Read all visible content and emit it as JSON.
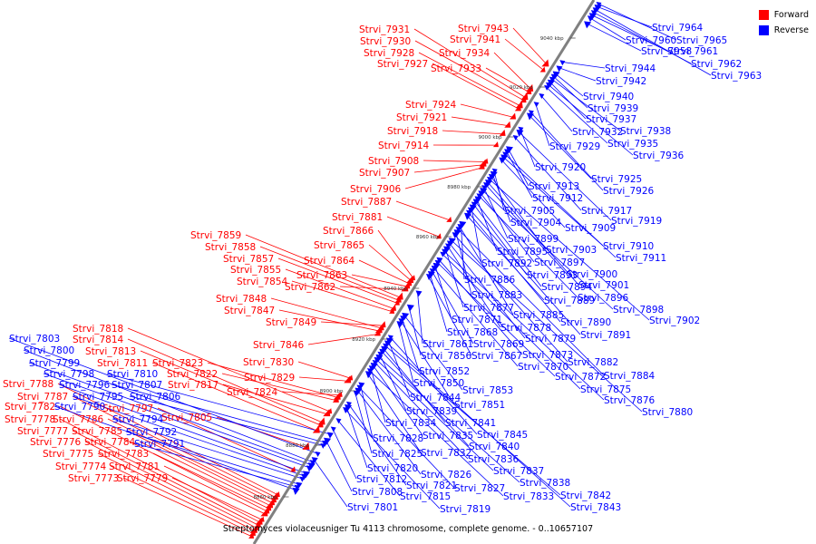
{
  "caption": "Streptomyces violaceusniger Tu 4113 chromosome, complete genome. - 0..10657107",
  "legend": [
    {
      "label": "Forward",
      "color": "#ff0000"
    },
    {
      "label": "Reverse",
      "color": "#0000ff"
    }
  ],
  "colors": {
    "forward": "#ff0000",
    "reverse": "#0000ff",
    "axis": "#808080"
  },
  "scale_ticks": [
    "8860 kbp",
    "8880 kbp",
    "8900 kbp",
    "8920 kbp",
    "8940 kbp",
    "8960 kbp",
    "8980 kbp",
    "9000 kbp",
    "9020 kbp",
    "9040 kbp"
  ],
  "forward_genes": [
    "Strvi_7773",
    "Strvi_7774",
    "Strvi_7775",
    "Strvi_7776",
    "Strvi_7777",
    "Strvi_7778",
    "Strvi_7779",
    "Strvi_7781",
    "Strvi_7782",
    "Strvi_7783",
    "Strvi_7784",
    "Strvi_7785",
    "Strvi_7786",
    "Strvi_7787",
    "Strvi_7788",
    "Strvi_7797",
    "Strvi_7805",
    "Strvi_7811",
    "Strvi_7813",
    "Strvi_7814",
    "Strvi_7817",
    "Strvi_7818",
    "Strvi_7822",
    "Strvi_7823",
    "Strvi_7824",
    "Strvi_7829",
    "Strvi_7830",
    "Strvi_7846",
    "Strvi_7847",
    "Strvi_7848",
    "Strvi_7849",
    "Strvi_7854",
    "Strvi_7855",
    "Strvi_7857",
    "Strvi_7858",
    "Strvi_7859",
    "Strvi_7862",
    "Strvi_7863",
    "Strvi_7864",
    "Strvi_7865",
    "Strvi_7866",
    "Strvi_7881",
    "Strvi_7887",
    "Strvi_7906",
    "Strvi_7907",
    "Strvi_7908",
    "Strvi_7914",
    "Strvi_7918",
    "Strvi_7921",
    "Strvi_7924",
    "Strvi_7927",
    "Strvi_7928",
    "Strvi_7930",
    "Strvi_7931",
    "Strvi_7933",
    "Strvi_7934",
    "Strvi_7941",
    "Strvi_7943"
  ],
  "reverse_genes": [
    "Strvi_7790",
    "Strvi_7791",
    "Strvi_7792",
    "Strvi_7794",
    "Strvi_7795",
    "Strvi_7796",
    "Strvi_7798",
    "Strvi_7799",
    "Strvi_7800",
    "Strvi_7801",
    "Strvi_7803",
    "Strvi_7806",
    "Strvi_7807",
    "Strvi_7808",
    "Strvi_7810",
    "Strvi_7812",
    "Strvi_7815",
    "Strvi_7819",
    "Strvi_7820",
    "Strvi_7821",
    "Strvi_7825",
    "Strvi_7826",
    "Strvi_7827",
    "Strvi_7828",
    "Strvi_7832",
    "Strvi_7833",
    "Strvi_7834",
    "Strvi_7835",
    "Strvi_7836",
    "Strvi_7837",
    "Strvi_7838",
    "Strvi_7839",
    "Strvi_7840",
    "Strvi_7841",
    "Strvi_7842",
    "Strvi_7843",
    "Strvi_7844",
    "Strvi_7845",
    "Strvi_7850",
    "Strvi_7851",
    "Strvi_7852",
    "Strvi_7853",
    "Strvi_7856",
    "Strvi_7861",
    "Strvi_7867",
    "Strvi_7868",
    "Strvi_7869",
    "Strvi_7870",
    "Strvi_7871",
    "Strvi_7872",
    "Strvi_7873",
    "Strvi_7875",
    "Strvi_7876",
    "Strvi_7877",
    "Strvi_7878",
    "Strvi_7879",
    "Strvi_7880",
    "Strvi_7882",
    "Strvi_7883",
    "Strvi_7884",
    "Strvi_7885",
    "Strvi_7886",
    "Strvi_7889",
    "Strvi_7890",
    "Strvi_7891",
    "Strvi_7892",
    "Strvi_7893",
    "Strvi_7894",
    "Strvi_7895",
    "Strvi_7896",
    "Strvi_7897",
    "Strvi_7898",
    "Strvi_7899",
    "Strvi_7900",
    "Strvi_7901",
    "Strvi_7902",
    "Strvi_7903",
    "Strvi_7904",
    "Strvi_7905",
    "Strvi_7909",
    "Strvi_7910",
    "Strvi_7911",
    "Strvi_7912",
    "Strvi_7913",
    "Strvi_7917",
    "Strvi_7919",
    "Strvi_7920",
    "Strvi_7925",
    "Strvi_7926",
    "Strvi_7929",
    "Strvi_7932",
    "Strvi_7935",
    "Strvi_7936",
    "Strvi_7937",
    "Strvi_7938",
    "Strvi_7939",
    "Strvi_7940",
    "Strvi_7942",
    "Strvi_7944",
    "Strvi_7958",
    "Strvi_7960",
    "Strvi_7961",
    "Strvi_7962",
    "Strvi_7963",
    "Strvi_7964",
    "Strvi_7965"
  ]
}
